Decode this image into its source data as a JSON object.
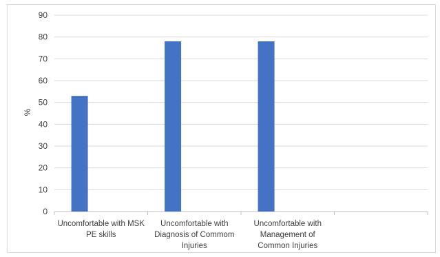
{
  "chart_data": {
    "type": "bar",
    "categories": [
      [
        "Uncomfortable with MSK",
        "PE skills"
      ],
      [
        "Uncomfortable with",
        "Diagnosis of Commom",
        "Injuries"
      ],
      [
        "Uncomfortable with",
        "Management of",
        "Common Injuries"
      ],
      [
        ""
      ]
    ],
    "values": [
      53,
      78,
      78,
      null
    ],
    "title": "",
    "xlabel": "",
    "ylabel": "%",
    "ylim": [
      0,
      90
    ],
    "yticks": [
      0,
      10,
      20,
      30,
      40,
      50,
      60,
      70,
      80,
      90
    ],
    "grid": true,
    "bar_color": "#4472c4",
    "grid_color": "#d9d9d9"
  }
}
